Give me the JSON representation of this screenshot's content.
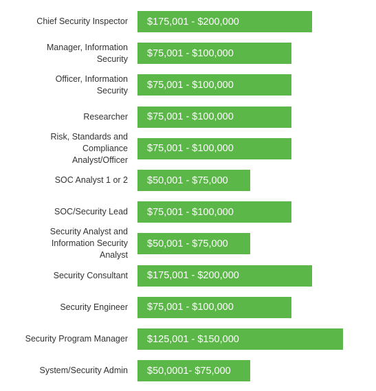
{
  "colors": {
    "bar": "#5cb749",
    "bar_text": "#ffffff",
    "label_text": "#333333"
  },
  "chart_data": {
    "type": "bar",
    "orientation": "horizontal",
    "title": "",
    "xlabel": "",
    "ylabel": "",
    "grid": false,
    "categories": [
      "Chief Security Inspector",
      "Manager, Information\nSecurity",
      "Officer, Information\nSecurity",
      "Researcher",
      "Risk, Standards and\nCompliance\nAnalyst/Officer",
      "SOC Analyst 1 or 2",
      "SOC/Security Lead",
      "Security Analyst and\nInformation Security\nAnalyst",
      "Security Consultant",
      "Security Engineer",
      "Security Program Manager",
      "System/Security Admin"
    ],
    "values": [
      200000,
      100000,
      100000,
      100000,
      100000,
      75000,
      100000,
      75000,
      200000,
      100000,
      150000,
      75000
    ],
    "data_labels": [
      "$175,001 - $200,000",
      "$75,001 - $100,000",
      "$75,001 - $100,000",
      "$75,001 - $100,000",
      "$75,001 - $100,000",
      "$50,001 - $75,000",
      "$75,001 - $100,000",
      "$50,001 - $75,000",
      "$175,001 - $200,000",
      "$75,001 - $100,000",
      "$125,001 - $150,000",
      "$50,0001- $75,000"
    ],
    "xlim": [
      0,
      200000
    ]
  }
}
